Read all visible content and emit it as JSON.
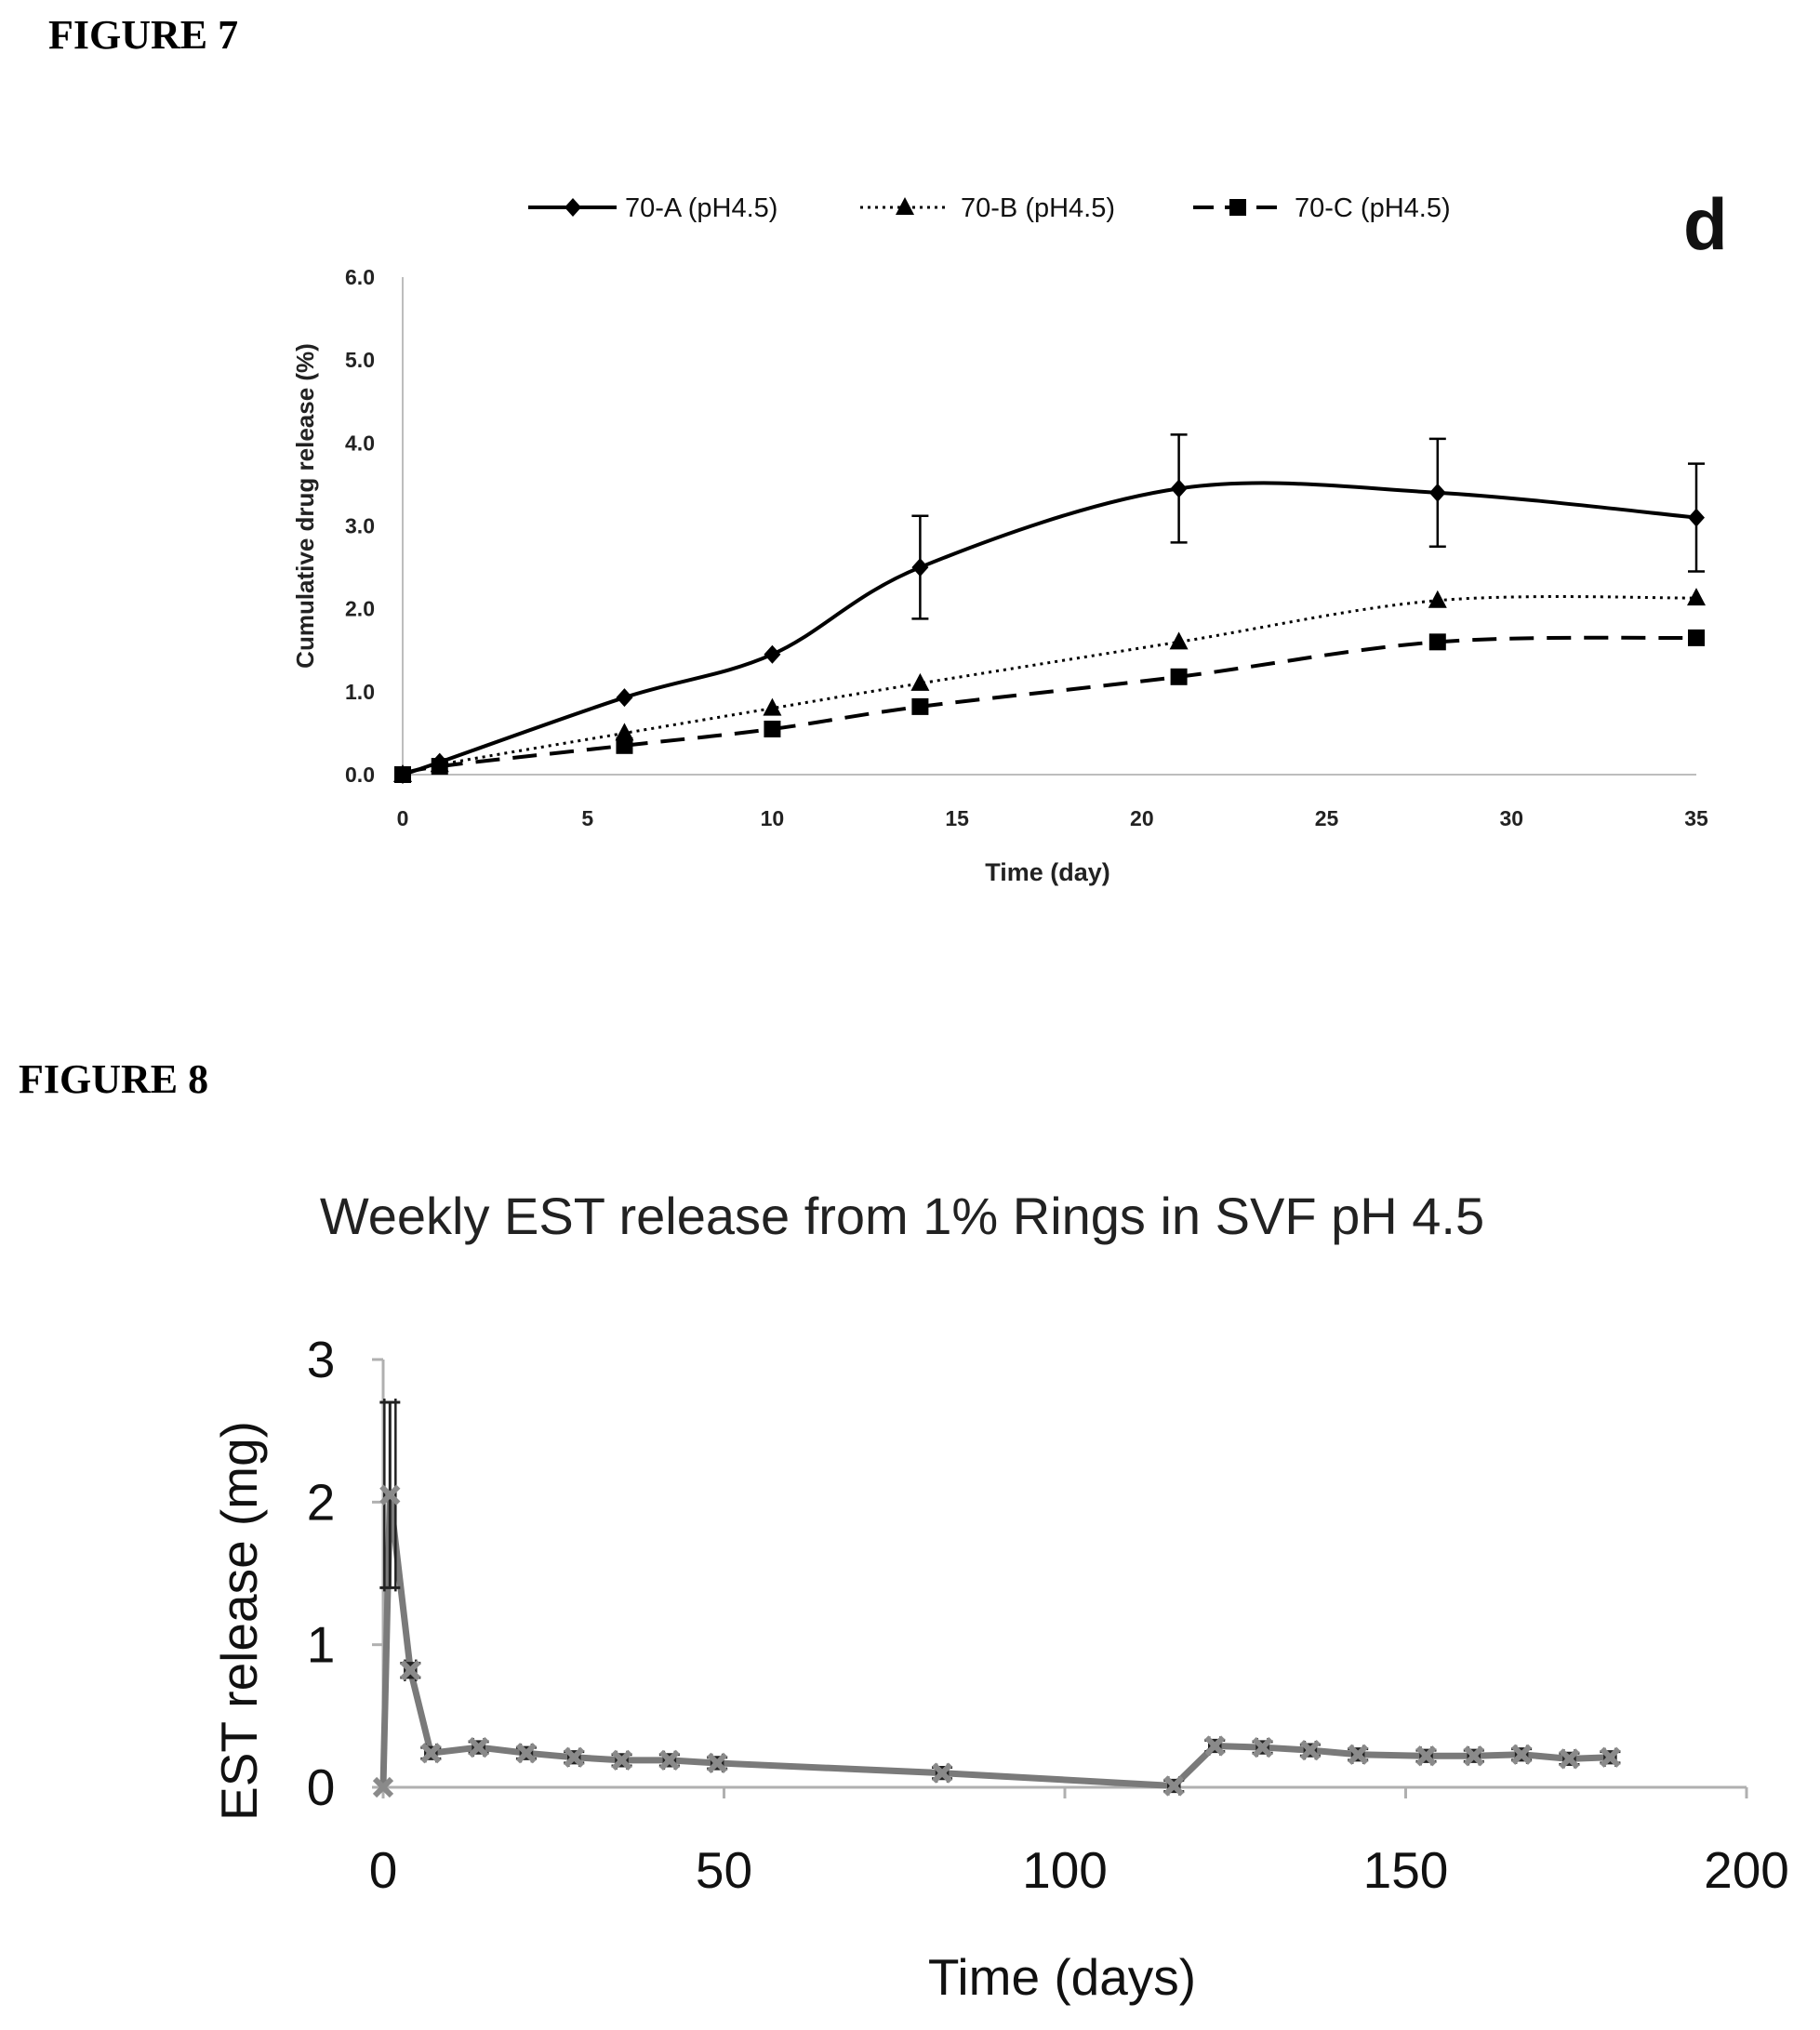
{
  "figures": {
    "fig7_label": "FIGURE 7",
    "fig8_label": "FIGURE 8"
  },
  "chart_data": [
    {
      "type": "line",
      "panel_letter": "d",
      "title": "",
      "xlabel": "Time (day)",
      "ylabel": "Cumulative drug release (%)",
      "xlim": [
        0,
        35
      ],
      "ylim": [
        0,
        6
      ],
      "x_ticks": [
        0,
        5,
        10,
        15,
        20,
        25,
        30,
        35
      ],
      "y_ticks": [
        "0.0",
        "1.0",
        "2.0",
        "3.0",
        "4.0",
        "5.0",
        "6.0"
      ],
      "grid": false,
      "legend_position": "top",
      "series": [
        {
          "name": "70-A (pH4.5)",
          "line_style": "solid",
          "marker": "diamond",
          "color": "#000000",
          "x": [
            0,
            1,
            6,
            10,
            14,
            21,
            28,
            35
          ],
          "y": [
            0.0,
            0.15,
            0.93,
            1.45,
            2.5,
            3.45,
            3.4,
            3.1
          ],
          "error": [
            0,
            0,
            0,
            0,
            0.62,
            0.65,
            0.65,
            0.65
          ]
        },
        {
          "name": "70-B (pH4.5)",
          "line_style": "dotted",
          "marker": "triangle",
          "color": "#000000",
          "x": [
            0,
            1,
            6,
            10,
            14,
            21,
            28,
            35
          ],
          "y": [
            0.0,
            0.12,
            0.5,
            0.8,
            1.1,
            1.6,
            2.1,
            2.13
          ],
          "error": [
            0,
            0,
            0,
            0,
            0,
            0,
            0,
            0
          ]
        },
        {
          "name": "70-C (pH4.5)",
          "line_style": "dashed",
          "marker": "square",
          "color": "#000000",
          "x": [
            0,
            1,
            6,
            10,
            14,
            21,
            28,
            35
          ],
          "y": [
            0.0,
            0.1,
            0.35,
            0.55,
            0.82,
            1.18,
            1.6,
            1.65
          ],
          "error": [
            0,
            0,
            0,
            0,
            0,
            0,
            0,
            0
          ]
        }
      ]
    },
    {
      "type": "line",
      "title": "Weekly EST release from 1% Rings in SVF pH 4.5",
      "xlabel": "Time (days)",
      "ylabel": "EST release (mg)",
      "xlim": [
        0,
        200
      ],
      "ylim": [
        0,
        3
      ],
      "x_ticks": [
        0,
        50,
        100,
        150,
        200
      ],
      "y_ticks": [
        0,
        1,
        2,
        3
      ],
      "grid": false,
      "series": [
        {
          "line_color": "#7a7a7a",
          "marker": "cross",
          "x": [
            0,
            1,
            4,
            7,
            14,
            21,
            28,
            35,
            42,
            49,
            82,
            116,
            122,
            129,
            136,
            143,
            153,
            160,
            167,
            174,
            180
          ],
          "y": [
            0,
            2.05,
            0.82,
            0.24,
            0.28,
            0.24,
            0.21,
            0.19,
            0.19,
            0.17,
            0.1,
            0.01,
            0.29,
            0.28,
            0.26,
            0.23,
            0.22,
            0.22,
            0.23,
            0.2,
            0.21
          ],
          "error": [
            0,
            0.65,
            0.05,
            0.04,
            0.04,
            0.04,
            0.04,
            0.04,
            0.04,
            0.04,
            0.04,
            0.04,
            0.04,
            0.04,
            0.04,
            0.04,
            0.04,
            0.04,
            0.04,
            0.04,
            0.04
          ]
        }
      ]
    }
  ]
}
